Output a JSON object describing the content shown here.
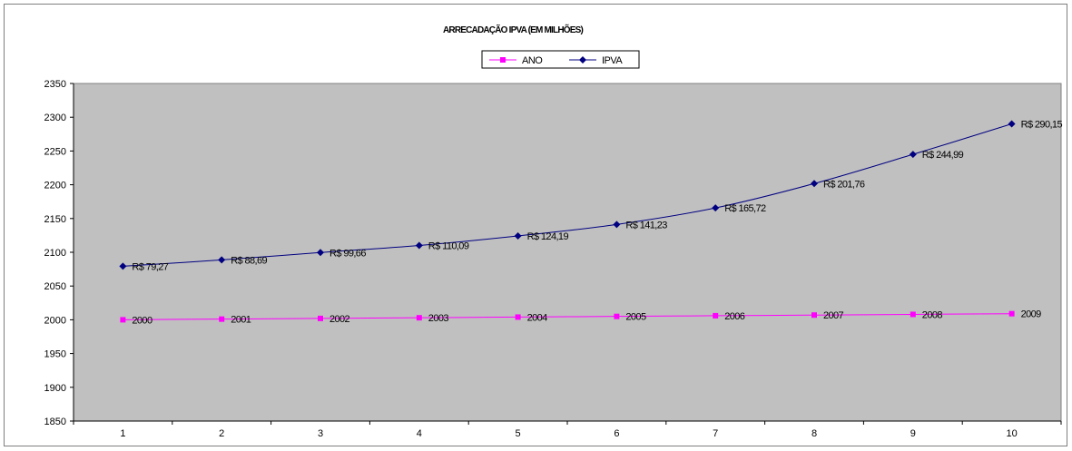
{
  "chart_data": {
    "type": "line",
    "title": "ARRECADAÇÃO IPVA (EM MILHÕES)",
    "categories": [
      "1",
      "2",
      "3",
      "4",
      "5",
      "6",
      "7",
      "8",
      "9",
      "10"
    ],
    "series": [
      {
        "name": "ANO",
        "color": "#ff00ff",
        "marker": "square",
        "values": [
          2000,
          2001,
          2002,
          2003,
          2004,
          2005,
          2006,
          2007,
          2008,
          2009
        ],
        "labels": [
          "2000",
          "2001",
          "2002",
          "2003",
          "2004",
          "2005",
          "2006",
          "2007",
          "2008",
          "2009"
        ]
      },
      {
        "name": "IPVA",
        "color": "#000080",
        "marker": "diamond",
        "values": [
          2079.27,
          2088.69,
          2099.66,
          2110.09,
          2124.19,
          2141.23,
          2165.72,
          2201.76,
          2244.99,
          2290.15
        ],
        "labels": [
          "R$ 79,27",
          "R$ 88,69",
          "R$ 99,66",
          "R$ 110,09",
          "R$ 124,19",
          "R$ 141,23",
          "R$ 165,72",
          "R$ 201,76",
          "R$ 244,99",
          "R$ 290,15"
        ]
      }
    ],
    "ylim": [
      1850,
      2350
    ],
    "yticks": [
      1850,
      1900,
      1950,
      2000,
      2050,
      2100,
      2150,
      2200,
      2250,
      2300,
      2350
    ],
    "xlabel": "",
    "ylabel": "",
    "grid": false,
    "plot_background": "#c0c0c0",
    "legend_position": "top-center"
  }
}
